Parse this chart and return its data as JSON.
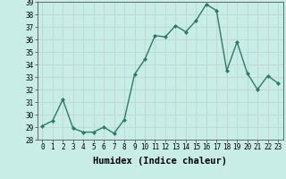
{
  "xlabel": "Humidex (Indice chaleur)",
  "ylabel": "",
  "x_values": [
    0,
    1,
    2,
    3,
    4,
    5,
    6,
    7,
    8,
    9,
    10,
    11,
    12,
    13,
    14,
    15,
    16,
    17,
    18,
    19,
    20,
    21,
    22,
    23
  ],
  "y_values": [
    29.1,
    29.5,
    31.2,
    28.9,
    28.6,
    28.6,
    29.0,
    28.5,
    29.6,
    33.2,
    34.4,
    36.3,
    36.2,
    37.1,
    36.6,
    37.5,
    38.8,
    38.3,
    33.5,
    35.8,
    33.3,
    32.0,
    33.1,
    32.5
  ],
  "line_color": "#2d7a6a",
  "marker": "D",
  "marker_size": 2.0,
  "line_width": 1.0,
  "bg_color": "#c8ede6",
  "grid_color": "#c0d8d0",
  "ylim": [
    28,
    39
  ],
  "yticks": [
    28,
    29,
    30,
    31,
    32,
    33,
    34,
    35,
    36,
    37,
    38,
    39
  ],
  "xticks": [
    0,
    1,
    2,
    3,
    4,
    5,
    6,
    7,
    8,
    9,
    10,
    11,
    12,
    13,
    14,
    15,
    16,
    17,
    18,
    19,
    20,
    21,
    22,
    23
  ],
  "tick_fontsize": 5.5,
  "xlabel_fontsize": 7.5
}
